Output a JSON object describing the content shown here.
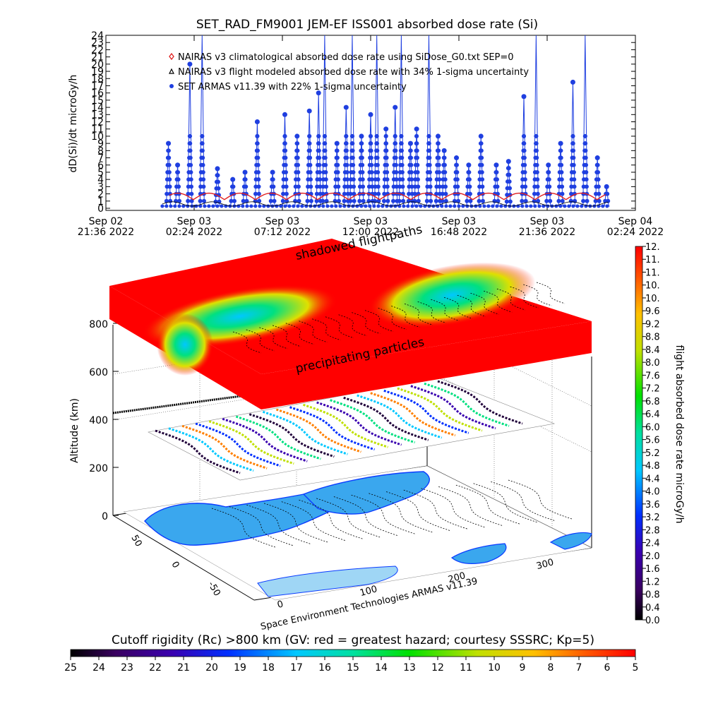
{
  "colors": {
    "armas": "#1f3fe0",
    "nairas_clim": "#e02020",
    "nairas_flight": "#000000",
    "ocean": "#ffffff",
    "land_edge": "#0b3cff",
    "land_fill": "#3aa7ee"
  },
  "chart_data": [
    {
      "type": "line",
      "title": "SET_RAD_FM9001  JEM-EF ISS001 absorbed dose rate (Si)",
      "ylabel": "dD(Si)/dt microGy/h",
      "ylim": [
        0,
        24
      ],
      "yticks": [
        "0",
        "1",
        "2",
        "3",
        "4",
        "5",
        "6",
        "7",
        "8",
        "9",
        "10",
        "11",
        "12",
        "13",
        "14",
        "15",
        "16",
        "17",
        "18",
        "19",
        "20",
        "21",
        "22",
        "23",
        "24"
      ],
      "x_tick_labels": [
        {
          "date": "Sep 02",
          "time": "21:36 2022"
        },
        {
          "date": "Sep 03",
          "time": "02:24 2022"
        },
        {
          "date": "Sep 03",
          "time": "07:12 2022"
        },
        {
          "date": "Sep 03",
          "time": "12:00 2022"
        },
        {
          "date": "Sep 03",
          "time": "16:48 2022"
        },
        {
          "date": "Sep 03",
          "time": "21:36 2022"
        },
        {
          "date": "Sep 04",
          "time": "02:24 2022"
        }
      ],
      "xlim": [
        "2022-09-02 21:36",
        "2022-09-04 02:24"
      ],
      "legend_position": "top-left",
      "series": [
        {
          "name": "NAIRAS v3 climatological absorbed dose rate using SiDose_G0.txt SEP=0",
          "marker": "diamond",
          "color": "#e02020"
        },
        {
          "name": "NAIRAS v3 flight modeled absorbed dose rate with 34% 1-sigma uncertainty",
          "marker": "triangle",
          "color": "#000000"
        },
        {
          "name": "SET ARMAS v11.39 with 22% 1-sigma uncertainty",
          "marker": "dot",
          "color": "#1f3fe0"
        }
      ],
      "armas_peaks": [
        {
          "x": "2022-09-03 01:00",
          "y": 9.0
        },
        {
          "x": "2022-09-03 01:30",
          "y": 6.0
        },
        {
          "x": "2022-09-03 02:10",
          "y": 20.0
        },
        {
          "x": "2022-09-03 02:50",
          "y": 24.0
        },
        {
          "x": "2022-09-03 03:40",
          "y": 5.5
        },
        {
          "x": "2022-09-03 04:30",
          "y": 4.0
        },
        {
          "x": "2022-09-03 05:10",
          "y": 5.0
        },
        {
          "x": "2022-09-03 05:50",
          "y": 12.0
        },
        {
          "x": "2022-09-03 06:40",
          "y": 5.0
        },
        {
          "x": "2022-09-03 07:20",
          "y": 13.0
        },
        {
          "x": "2022-09-03 08:00",
          "y": 10.0
        },
        {
          "x": "2022-09-03 08:40",
          "y": 13.5
        },
        {
          "x": "2022-09-03 09:10",
          "y": 16.0
        },
        {
          "x": "2022-09-03 09:30",
          "y": 24.0
        },
        {
          "x": "2022-09-03 10:10",
          "y": 9.0
        },
        {
          "x": "2022-09-03 10:40",
          "y": 14.0
        },
        {
          "x": "2022-09-03 11:00",
          "y": 24.0
        },
        {
          "x": "2022-09-03 11:30",
          "y": 10.0
        },
        {
          "x": "2022-09-03 12:00",
          "y": 13.0
        },
        {
          "x": "2022-09-03 12:20",
          "y": 24.0
        },
        {
          "x": "2022-09-03 12:50",
          "y": 11.0
        },
        {
          "x": "2022-09-03 13:20",
          "y": 14.0
        },
        {
          "x": "2022-09-03 13:40",
          "y": 24.0
        },
        {
          "x": "2022-09-03 14:10",
          "y": 9.0
        },
        {
          "x": "2022-09-03 14:30",
          "y": 11.0
        },
        {
          "x": "2022-09-03 15:10",
          "y": 24.0
        },
        {
          "x": "2022-09-03 15:40",
          "y": 10.0
        },
        {
          "x": "2022-09-03 16:00",
          "y": 8.0
        },
        {
          "x": "2022-09-03 16:40",
          "y": 7.0
        },
        {
          "x": "2022-09-03 17:20",
          "y": 6.0
        },
        {
          "x": "2022-09-03 18:00",
          "y": 10.0
        },
        {
          "x": "2022-09-03 18:50",
          "y": 6.0
        },
        {
          "x": "2022-09-03 19:30",
          "y": 6.5
        },
        {
          "x": "2022-09-03 20:20",
          "y": 15.5
        },
        {
          "x": "2022-09-03 21:00",
          "y": 24.0
        },
        {
          "x": "2022-09-03 21:40",
          "y": 6.0
        },
        {
          "x": "2022-09-03 22:20",
          "y": 9.0
        },
        {
          "x": "2022-09-03 23:00",
          "y": 17.5
        },
        {
          "x": "2022-09-03 23:40",
          "y": 24.0
        },
        {
          "x": "2022-09-04 00:20",
          "y": 7.0
        },
        {
          "x": "2022-09-04 00:50",
          "y": 3.0
        }
      ],
      "nairas_clim_baseline": 2.0
    },
    {
      "type": "heatmap",
      "zlabel": "Altitude (km)",
      "zticks": [
        "0",
        "200",
        "400",
        "600",
        "800"
      ],
      "x_axis_ticks": [
        "0",
        "100",
        "200",
        "300"
      ],
      "y_axis_ticks": [
        "50",
        "0",
        "-50"
      ],
      "annotations": [
        "shadowed flightpaths",
        "precipitating particles"
      ],
      "credit": "Space Environment Technologies ARMAS v11.39",
      "colorbar": {
        "label": "flight absorbed dose rate microGy/h",
        "ticks": [
          "0.0",
          "0.4",
          "0.8",
          "1.2",
          "1.6",
          "2.0",
          "2.4",
          "2.8",
          "3.2",
          "3.6",
          "4.0",
          "4.4",
          "4.8",
          "5.2",
          "5.6",
          "6.0",
          "6.4",
          "6.8",
          "7.2",
          "7.6",
          "8.0",
          "8.4",
          "8.8",
          "9.2",
          "9.6",
          "10.",
          "10.",
          "11.",
          "11.",
          "12."
        ],
        "range": [
          0,
          12
        ]
      },
      "cutoff_colorbar": {
        "label": "Cutoff rigidity (Rc) >800 km (GV: red = greatest hazard; courtesy SSSRC; Kp=5)",
        "ticks": [
          "25",
          "24",
          "23",
          "22",
          "21",
          "20",
          "19",
          "18",
          "17",
          "16",
          "15",
          "14",
          "13",
          "12",
          "11",
          "10",
          "9",
          "8",
          "7",
          "6",
          "5"
        ],
        "range": [
          25,
          5
        ]
      }
    }
  ]
}
